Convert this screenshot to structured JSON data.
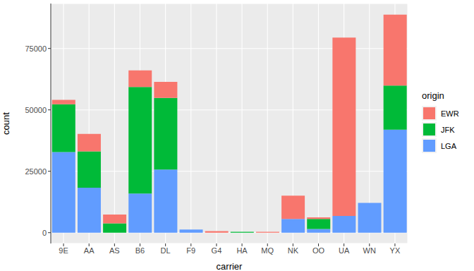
{
  "chart_data": {
    "type": "bar",
    "stacked": true,
    "x_label": "carrier",
    "y_label": "count",
    "legend_title": "origin",
    "legend": "right",
    "grid": true,
    "categories": [
      "9E",
      "AA",
      "AS",
      "B6",
      "DL",
      "F9",
      "G4",
      "HA",
      "MQ",
      "NK",
      "OO",
      "UA",
      "WN",
      "YX"
    ],
    "series": [
      {
        "name": "EWR",
        "color": "#F8766D",
        "values": [
          1800,
          7100,
          3600,
          6800,
          6500,
          0,
          600,
          0,
          350,
          9500,
          600,
          72600,
          0,
          28900
        ]
      },
      {
        "name": "JFK",
        "color": "#00BA38",
        "values": [
          19500,
          14800,
          3800,
          43400,
          29200,
          0,
          0,
          360,
          0,
          0,
          4100,
          0,
          0,
          18000
        ]
      },
      {
        "name": "LGA",
        "color": "#619CFF",
        "values": [
          32800,
          18300,
          0,
          15900,
          25700,
          1300,
          0,
          0,
          0,
          5600,
          1500,
          6800,
          12100,
          41900
        ]
      }
    ],
    "ylim": [
      -4400,
      93300
    ],
    "yticks": [
      0,
      25000,
      50000,
      75000
    ]
  }
}
